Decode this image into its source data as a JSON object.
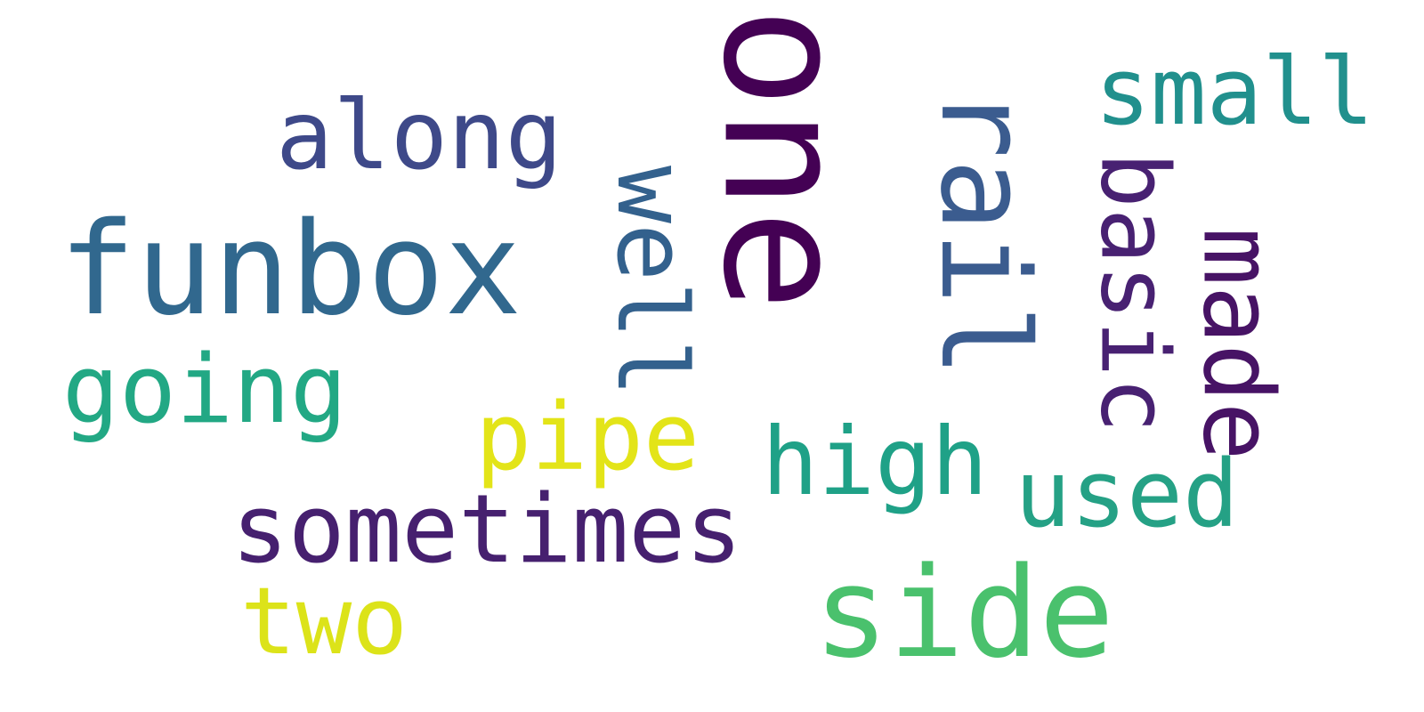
{
  "words": [
    {
      "id": "one",
      "text": "one",
      "color": "#440154",
      "orientation": "vertical"
    },
    {
      "id": "funbox",
      "text": "funbox",
      "color": "#31688e",
      "orientation": "horizontal"
    },
    {
      "id": "rail",
      "text": "rail",
      "color": "#3b5c8f",
      "orientation": "vertical"
    },
    {
      "id": "side",
      "text": "side",
      "color": "#4ac16d",
      "orientation": "horizontal"
    },
    {
      "id": "basic",
      "text": "basic",
      "color": "#482172",
      "orientation": "vertical"
    },
    {
      "id": "made",
      "text": "made",
      "color": "#471365",
      "orientation": "vertical"
    },
    {
      "id": "well",
      "text": "well",
      "color": "#33618d",
      "orientation": "vertical"
    },
    {
      "id": "along",
      "text": "along",
      "color": "#3e4989",
      "orientation": "horizontal"
    },
    {
      "id": "small",
      "text": "small",
      "color": "#21908d",
      "orientation": "horizontal"
    },
    {
      "id": "going",
      "text": "going",
      "color": "#22a884",
      "orientation": "horizontal"
    },
    {
      "id": "pipe",
      "text": "pipe",
      "color": "#e3e418",
      "orientation": "horizontal"
    },
    {
      "id": "high",
      "text": "high",
      "color": "#1fa187",
      "orientation": "horizontal"
    },
    {
      "id": "used",
      "text": "used",
      "color": "#25a185",
      "orientation": "horizontal"
    },
    {
      "id": "sometimes",
      "text": "sometimes",
      "color": "#46206f",
      "orientation": "horizontal"
    },
    {
      "id": "two",
      "text": "two",
      "color": "#dce319",
      "orientation": "horizontal"
    }
  ]
}
